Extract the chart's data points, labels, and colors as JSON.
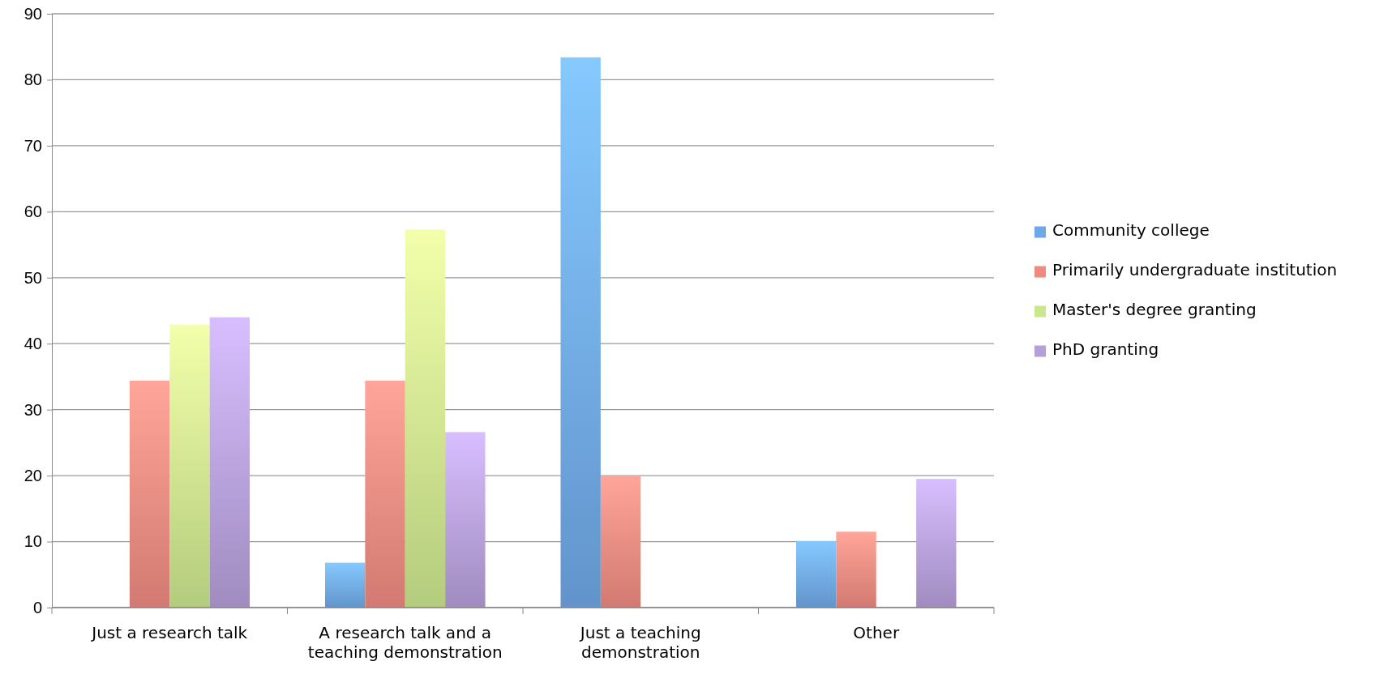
{
  "chart_data": {
    "type": "bar",
    "categories": [
      "Just a research talk",
      "A research talk and a teaching demonstration",
      "Just a teaching demonstration",
      "Other"
    ],
    "series": [
      {
        "name": "Community college",
        "color": "#6fa8e6",
        "values": [
          0,
          6.8,
          83.4,
          10.1
        ]
      },
      {
        "name": "Primarily undergraduate institution",
        "color": "#ee8a80",
        "values": [
          34.4,
          34.4,
          20.0,
          11.5
        ]
      },
      {
        "name": "Master's degree granting",
        "color": "#cbe78e",
        "values": [
          42.9,
          57.3,
          0,
          0
        ]
      },
      {
        "name": "PhD granting",
        "color": "#b59fd8",
        "values": [
          44.0,
          26.6,
          0,
          19.5
        ]
      }
    ],
    "ylim": [
      0,
      90
    ],
    "yticks": [
      0,
      10,
      20,
      30,
      40,
      50,
      60,
      70,
      80,
      90
    ],
    "grid": "y",
    "legend": "right"
  }
}
